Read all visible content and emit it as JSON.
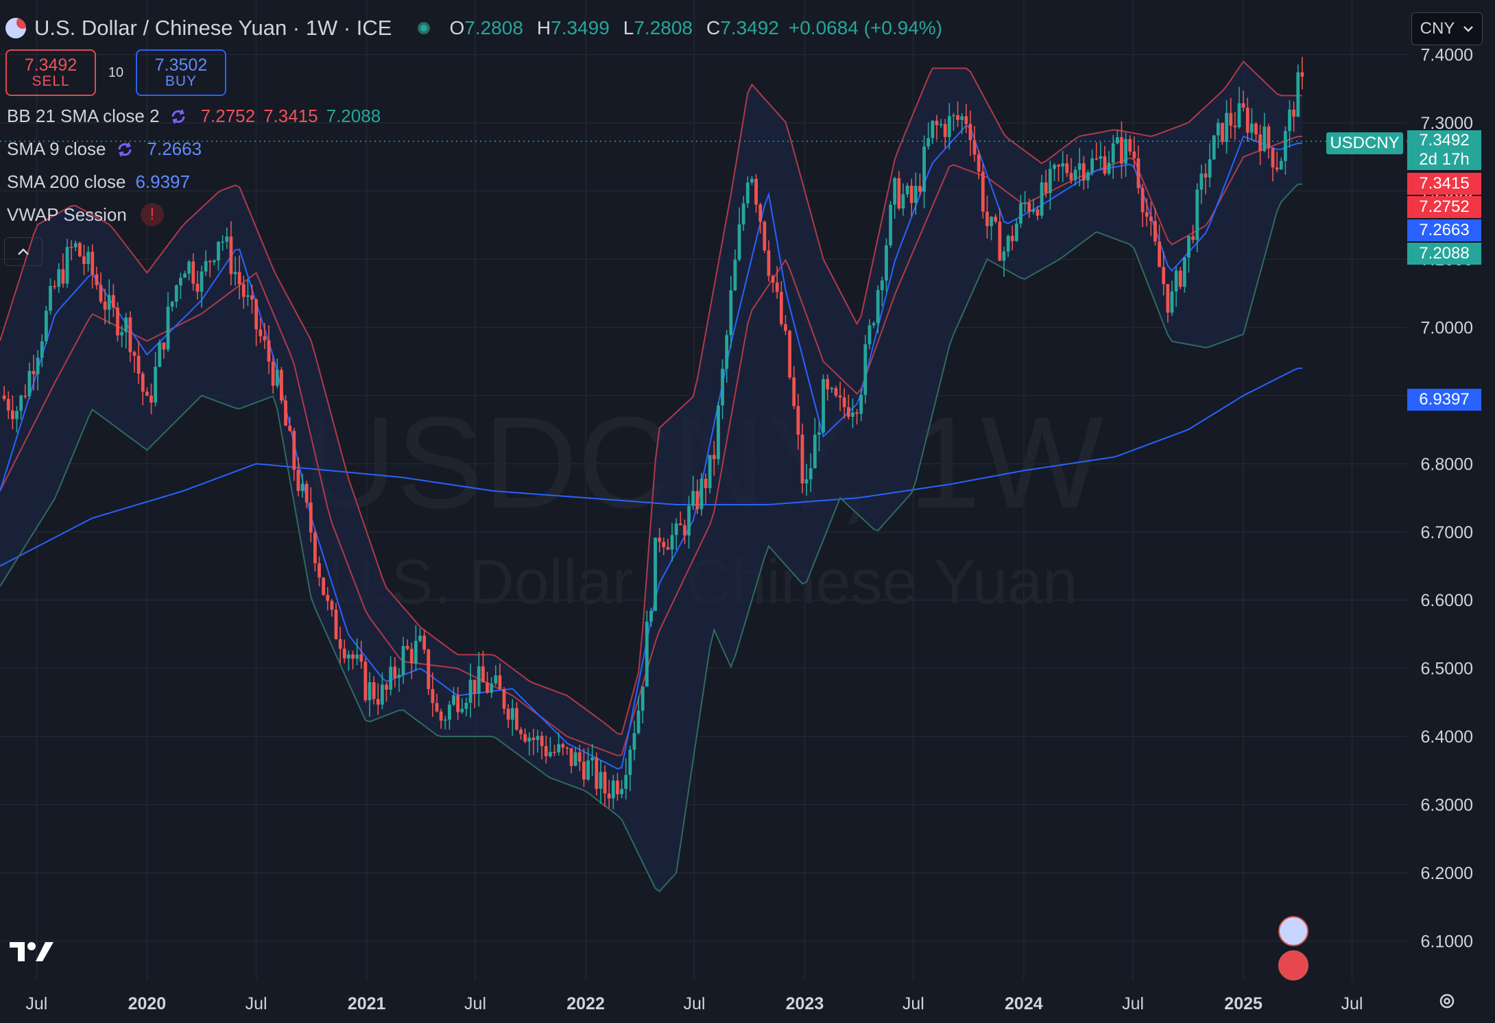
{
  "header": {
    "title": "U.S. Dollar / Chinese Yuan · 1W · ICE",
    "ohlc": {
      "o_label": "O",
      "o": "7.2808",
      "h_label": "H",
      "h": "7.3499",
      "l_label": "L",
      "l": "7.2808",
      "c_label": "C",
      "c": "7.3492",
      "change": "+0.0684 (+0.94%)"
    }
  },
  "trade": {
    "sell_price": "7.3492",
    "sell_label": "SELL",
    "spread": "10",
    "buy_price": "7.3502",
    "buy_label": "BUY"
  },
  "indicators": {
    "bb": {
      "label": "BB 21 SMA close 2",
      "basis": "7.2752",
      "upper": "7.3415",
      "lower": "7.2088"
    },
    "sma9": {
      "label": "SMA 9 close",
      "value": "7.2663"
    },
    "sma200": {
      "label": "SMA 200 close",
      "value": "6.9397"
    },
    "vwap": {
      "label": "VWAP Session",
      "warning": "!"
    }
  },
  "currency_selector": {
    "value": "CNY",
    "icon": "chevron-down-icon"
  },
  "price_tags": {
    "symbol": "USDCNY",
    "last": "7.3492",
    "countdown": "2d 17h",
    "bb_upper": "7.3415",
    "bb_basis": "7.2752",
    "sma9": "7.2663",
    "bb_lower": "7.2088",
    "sma200": "6.9397"
  },
  "watermark": {
    "symbol": "USDCNY, 1W",
    "name": "U.S. Dollar / Chinese Yuan"
  },
  "colors": {
    "background": "#161a25",
    "up": "#26a69a",
    "down": "#ef5350",
    "bb_upper": "#b03a48",
    "bb_basis": "#b03a48",
    "bb_lower": "#2f6b5e",
    "bb_fill": "#1b2440",
    "sma9": "#2962ff",
    "sma200": "#2962ff",
    "grid": "#232733"
  },
  "chart_data": {
    "type": "line",
    "symbol": "USDCNY",
    "timeframe": "1W",
    "ylim": [
      6.02,
      7.46
    ],
    "x_range": [
      "2019-05",
      "2025-10"
    ],
    "yticks": [
      "7.4000",
      "7.3000",
      "7.2000",
      "7.1000",
      "7.0000",
      "6.9000",
      "6.8000",
      "6.7000",
      "6.6000",
      "6.5000",
      "6.4000",
      "6.3000",
      "6.2000",
      "6.1000"
    ],
    "xticks": [
      {
        "label": "Jul",
        "t": "2019-07"
      },
      {
        "label": "2020",
        "t": "2020-01"
      },
      {
        "label": "Jul",
        "t": "2020-07"
      },
      {
        "label": "2021",
        "t": "2021-01"
      },
      {
        "label": "Jul",
        "t": "2021-07"
      },
      {
        "label": "2022",
        "t": "2022-01"
      },
      {
        "label": "Jul",
        "t": "2022-07"
      },
      {
        "label": "2023",
        "t": "2023-01"
      },
      {
        "label": "Jul",
        "t": "2023-07"
      },
      {
        "label": "2024",
        "t": "2024-01"
      },
      {
        "label": "Jul",
        "t": "2024-07"
      },
      {
        "label": "2025",
        "t": "2025-01"
      },
      {
        "label": "Jul",
        "t": "2025-07"
      }
    ],
    "close_path": [
      [
        "2019-05",
        6.9
      ],
      [
        "2019-06",
        6.88
      ],
      [
        "2019-08",
        7.06
      ],
      [
        "2019-09",
        7.12
      ],
      [
        "2019-10",
        7.08
      ],
      [
        "2019-11",
        7.02
      ],
      [
        "2019-12",
        7.0
      ],
      [
        "2020-01",
        6.88
      ],
      [
        "2020-02",
        7.0
      ],
      [
        "2020-03",
        7.1
      ],
      [
        "2020-04",
        7.07
      ],
      [
        "2020-05",
        7.14
      ],
      [
        "2020-06",
        7.07
      ],
      [
        "2020-07",
        7.0
      ],
      [
        "2020-08",
        6.93
      ],
      [
        "2020-09",
        6.8
      ],
      [
        "2020-10",
        6.7
      ],
      [
        "2020-11",
        6.57
      ],
      [
        "2020-12",
        6.53
      ],
      [
        "2021-01",
        6.47
      ],
      [
        "2021-02",
        6.46
      ],
      [
        "2021-03",
        6.52
      ],
      [
        "2021-04",
        6.53
      ],
      [
        "2021-05",
        6.42
      ],
      [
        "2021-06",
        6.46
      ],
      [
        "2021-07",
        6.48
      ],
      [
        "2021-08",
        6.47
      ],
      [
        "2021-09",
        6.44
      ],
      [
        "2021-10",
        6.4
      ],
      [
        "2021-11",
        6.38
      ],
      [
        "2021-12",
        6.37
      ],
      [
        "2022-01",
        6.36
      ],
      [
        "2022-02",
        6.32
      ],
      [
        "2022-03",
        6.34
      ],
      [
        "2022-04",
        6.45
      ],
      [
        "2022-05",
        6.7
      ],
      [
        "2022-06",
        6.69
      ],
      [
        "2022-07",
        6.74
      ],
      [
        "2022-08",
        6.8
      ],
      [
        "2022-09",
        7.05
      ],
      [
        "2022-10",
        7.25
      ],
      [
        "2022-11",
        7.1
      ],
      [
        "2022-12",
        6.97
      ],
      [
        "2023-01",
        6.75
      ],
      [
        "2023-02",
        6.9
      ],
      [
        "2023-03",
        6.88
      ],
      [
        "2023-04",
        6.9
      ],
      [
        "2023-05",
        7.05
      ],
      [
        "2023-06",
        7.2
      ],
      [
        "2023-07",
        7.18
      ],
      [
        "2023-08",
        7.29
      ],
      [
        "2023-09",
        7.3
      ],
      [
        "2023-10",
        7.31
      ],
      [
        "2023-11",
        7.15
      ],
      [
        "2023-12",
        7.11
      ],
      [
        "2024-01",
        7.18
      ],
      [
        "2024-02",
        7.19
      ],
      [
        "2024-03",
        7.23
      ],
      [
        "2024-04",
        7.24
      ],
      [
        "2024-05",
        7.24
      ],
      [
        "2024-06",
        7.26
      ],
      [
        "2024-07",
        7.26
      ],
      [
        "2024-08",
        7.13
      ],
      [
        "2024-09",
        7.03
      ],
      [
        "2024-10",
        7.12
      ],
      [
        "2024-11",
        7.24
      ],
      [
        "2024-12",
        7.3
      ],
      [
        "2025-01",
        7.31
      ],
      [
        "2025-02",
        7.28
      ],
      [
        "2025-03",
        7.24
      ],
      [
        "2025-04",
        7.35
      ]
    ],
    "bb_upper_path": [
      [
        "2019-05",
        6.98
      ],
      [
        "2019-07",
        7.15
      ],
      [
        "2019-09",
        7.18
      ],
      [
        "2019-11",
        7.15
      ],
      [
        "2020-01",
        7.08
      ],
      [
        "2020-03",
        7.15
      ],
      [
        "2020-05",
        7.2
      ],
      [
        "2020-06",
        7.21
      ],
      [
        "2020-08",
        7.08
      ],
      [
        "2020-10",
        6.98
      ],
      [
        "2020-12",
        6.78
      ],
      [
        "2021-02",
        6.62
      ],
      [
        "2021-04",
        6.56
      ],
      [
        "2021-06",
        6.52
      ],
      [
        "2021-08",
        6.52
      ],
      [
        "2021-10",
        6.48
      ],
      [
        "2021-12",
        6.46
      ],
      [
        "2022-02",
        6.42
      ],
      [
        "2022-03",
        6.4
      ],
      [
        "2022-04",
        6.5
      ],
      [
        "2022-05",
        6.85
      ],
      [
        "2022-07",
        6.9
      ],
      [
        "2022-09",
        7.2
      ],
      [
        "2022-10",
        7.36
      ],
      [
        "2022-12",
        7.3
      ],
      [
        "2023-02",
        7.1
      ],
      [
        "2023-04",
        7.0
      ],
      [
        "2023-06",
        7.25
      ],
      [
        "2023-08",
        7.38
      ],
      [
        "2023-10",
        7.38
      ],
      [
        "2023-12",
        7.28
      ],
      [
        "2024-02",
        7.24
      ],
      [
        "2024-04",
        7.28
      ],
      [
        "2024-06",
        7.29
      ],
      [
        "2024-08",
        7.28
      ],
      [
        "2024-10",
        7.3
      ],
      [
        "2024-12",
        7.35
      ],
      [
        "2025-01",
        7.39
      ],
      [
        "2025-03",
        7.34
      ],
      [
        "2025-04",
        7.34
      ]
    ],
    "bb_basis_path": [
      [
        "2019-05",
        6.76
      ],
      [
        "2019-08",
        6.92
      ],
      [
        "2019-10",
        7.02
      ],
      [
        "2020-01",
        6.98
      ],
      [
        "2020-04",
        7.02
      ],
      [
        "2020-07",
        7.08
      ],
      [
        "2020-09",
        6.95
      ],
      [
        "2020-11",
        6.72
      ],
      [
        "2021-01",
        6.58
      ],
      [
        "2021-03",
        6.51
      ],
      [
        "2021-06",
        6.5
      ],
      [
        "2021-09",
        6.46
      ],
      [
        "2021-12",
        6.4
      ],
      [
        "2022-03",
        6.37
      ],
      [
        "2022-05",
        6.55
      ],
      [
        "2022-08",
        6.72
      ],
      [
        "2022-10",
        7.02
      ],
      [
        "2022-12",
        7.1
      ],
      [
        "2023-02",
        6.95
      ],
      [
        "2023-04",
        6.9
      ],
      [
        "2023-06",
        7.05
      ],
      [
        "2023-09",
        7.24
      ],
      [
        "2023-11",
        7.22
      ],
      [
        "2024-01",
        7.18
      ],
      [
        "2024-04",
        7.22
      ],
      [
        "2024-07",
        7.25
      ],
      [
        "2024-09",
        7.12
      ],
      [
        "2024-11",
        7.15
      ],
      [
        "2025-01",
        7.25
      ],
      [
        "2025-04",
        7.28
      ]
    ],
    "bb_lower_path": [
      [
        "2019-05",
        6.62
      ],
      [
        "2019-08",
        6.75
      ],
      [
        "2019-10",
        6.88
      ],
      [
        "2020-01",
        6.82
      ],
      [
        "2020-04",
        6.9
      ],
      [
        "2020-06",
        6.88
      ],
      [
        "2020-08",
        6.9
      ],
      [
        "2020-10",
        6.6
      ],
      [
        "2020-12",
        6.48
      ],
      [
        "2021-01",
        6.42
      ],
      [
        "2021-03",
        6.44
      ],
      [
        "2021-05",
        6.4
      ],
      [
        "2021-08",
        6.4
      ],
      [
        "2021-11",
        6.34
      ],
      [
        "2022-01",
        6.32
      ],
      [
        "2022-03",
        6.28
      ],
      [
        "2022-05",
        6.17
      ],
      [
        "2022-06",
        6.2
      ],
      [
        "2022-08",
        6.56
      ],
      [
        "2022-09",
        6.5
      ],
      [
        "2022-11",
        6.68
      ],
      [
        "2023-01",
        6.62
      ],
      [
        "2023-03",
        6.75
      ],
      [
        "2023-05",
        6.7
      ],
      [
        "2023-07",
        6.76
      ],
      [
        "2023-09",
        6.98
      ],
      [
        "2023-11",
        7.1
      ],
      [
        "2024-01",
        7.07
      ],
      [
        "2024-03",
        7.1
      ],
      [
        "2024-05",
        7.14
      ],
      [
        "2024-07",
        7.12
      ],
      [
        "2024-09",
        6.98
      ],
      [
        "2024-11",
        6.97
      ],
      [
        "2025-01",
        6.99
      ],
      [
        "2025-03",
        7.18
      ],
      [
        "2025-04",
        7.21
      ]
    ],
    "sma9_path": [
      [
        "2019-05",
        6.76
      ],
      [
        "2019-08",
        7.02
      ],
      [
        "2019-10",
        7.08
      ],
      [
        "2020-01",
        6.96
      ],
      [
        "2020-04",
        7.04
      ],
      [
        "2020-06",
        7.12
      ],
      [
        "2020-08",
        6.95
      ],
      [
        "2020-10",
        6.72
      ],
      [
        "2020-12",
        6.55
      ],
      [
        "2021-02",
        6.48
      ],
      [
        "2021-04",
        6.5
      ],
      [
        "2021-06",
        6.46
      ],
      [
        "2021-09",
        6.47
      ],
      [
        "2021-12",
        6.39
      ],
      [
        "2022-03",
        6.35
      ],
      [
        "2022-05",
        6.62
      ],
      [
        "2022-07",
        6.72
      ],
      [
        "2022-09",
        6.98
      ],
      [
        "2022-11",
        7.2
      ],
      [
        "2022-12",
        7.05
      ],
      [
        "2023-02",
        6.84
      ],
      [
        "2023-04",
        6.89
      ],
      [
        "2023-06",
        7.1
      ],
      [
        "2023-08",
        7.24
      ],
      [
        "2023-10",
        7.3
      ],
      [
        "2023-12",
        7.15
      ],
      [
        "2024-02",
        7.18
      ],
      [
        "2024-05",
        7.23
      ],
      [
        "2024-07",
        7.24
      ],
      [
        "2024-09",
        7.08
      ],
      [
        "2024-11",
        7.14
      ],
      [
        "2025-01",
        7.28
      ],
      [
        "2025-03",
        7.26
      ],
      [
        "2025-04",
        7.27
      ]
    ],
    "sma200_path": [
      [
        "2019-05",
        6.65
      ],
      [
        "2019-10",
        6.72
      ],
      [
        "2020-03",
        6.76
      ],
      [
        "2020-07",
        6.8
      ],
      [
        "2020-11",
        6.79
      ],
      [
        "2021-03",
        6.78
      ],
      [
        "2021-08",
        6.76
      ],
      [
        "2022-01",
        6.75
      ],
      [
        "2022-06",
        6.74
      ],
      [
        "2022-11",
        6.74
      ],
      [
        "2023-04",
        6.75
      ],
      [
        "2023-09",
        6.77
      ],
      [
        "2024-01",
        6.79
      ],
      [
        "2024-06",
        6.81
      ],
      [
        "2024-10",
        6.85
      ],
      [
        "2025-01",
        6.9
      ],
      [
        "2025-04",
        6.94
      ]
    ]
  }
}
